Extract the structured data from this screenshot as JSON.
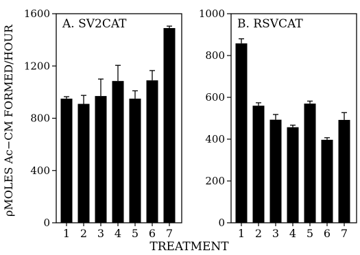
{
  "y_axis_label": "ρMOLES Ac−CM FORMED/HOUR",
  "x_axis_label": "TREATMENT",
  "chart_data": [
    {
      "type": "bar",
      "title": "A. SV2CAT",
      "categories": [
        "1",
        "2",
        "3",
        "4",
        "5",
        "6",
        "7"
      ],
      "values": [
        950,
        910,
        970,
        1085,
        950,
        1090,
        1490
      ],
      "errors": [
        15,
        65,
        130,
        120,
        60,
        75,
        15
      ],
      "ylim": [
        0,
        1600
      ],
      "yticks": [
        0,
        400,
        800,
        1200,
        1600
      ],
      "color": "#000000"
    },
    {
      "type": "bar",
      "title": "B. RSVCAT",
      "categories": [
        "1",
        "2",
        "3",
        "4",
        "5",
        "6",
        "7"
      ],
      "values": [
        858,
        560,
        493,
        457,
        570,
        397,
        492
      ],
      "errors": [
        22,
        14,
        25,
        10,
        12,
        10,
        35
      ],
      "ylim": [
        0,
        1000
      ],
      "yticks": [
        0,
        200,
        400,
        600,
        800,
        1000
      ],
      "color": "#000000"
    }
  ]
}
